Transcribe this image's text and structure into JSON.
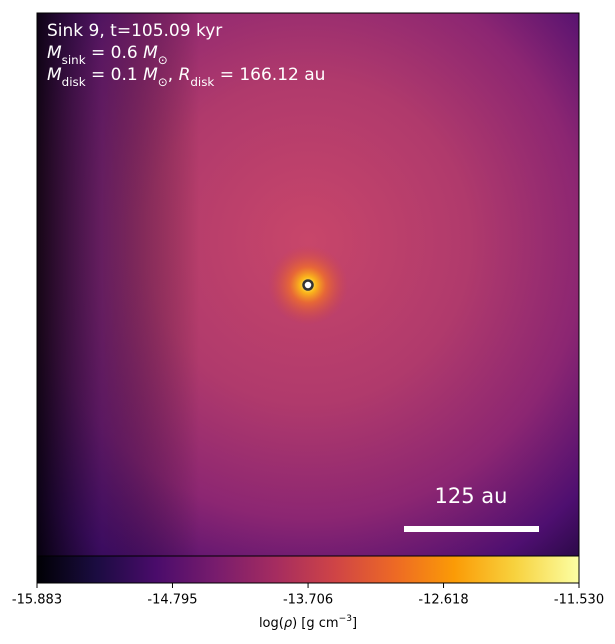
{
  "chart_data": {
    "type": "image",
    "annotation_lines": [
      [
        {
          "t": "Sink 9, t=105.09 kyr"
        }
      ],
      [
        {
          "t": "M",
          "i": true
        },
        {
          "t": "sink",
          "sub": true
        },
        {
          "t": " = 0.6 "
        },
        {
          "t": "M",
          "i": true
        },
        {
          "t": "⊙",
          "sub": true
        }
      ],
      [
        {
          "t": "M",
          "i": true
        },
        {
          "t": "disk",
          "sub": true
        },
        {
          "t": " = 0.1 "
        },
        {
          "t": "M",
          "i": true
        },
        {
          "t": "⊙",
          "sub": true
        },
        {
          "t": ", "
        },
        {
          "t": "R",
          "i": true
        },
        {
          "t": "disk",
          "sub": true
        },
        {
          "t": " = 166.12 au"
        }
      ]
    ],
    "scalebar_label": "125 au",
    "colorbar": {
      "xlim": [
        -15.883,
        -11.53
      ],
      "xticks": [
        -15.883,
        -14.795,
        -13.706,
        -12.618,
        {
          "value": -11.53,
          "label": "-11.530"
        }
      ],
      "label": [
        {
          "t": "log("
        },
        {
          "t": "ρ",
          "i": true
        },
        {
          "t": ") [g cm"
        },
        {
          "t": "−3",
          "sup": true
        },
        {
          "t": "]"
        }
      ]
    }
  }
}
